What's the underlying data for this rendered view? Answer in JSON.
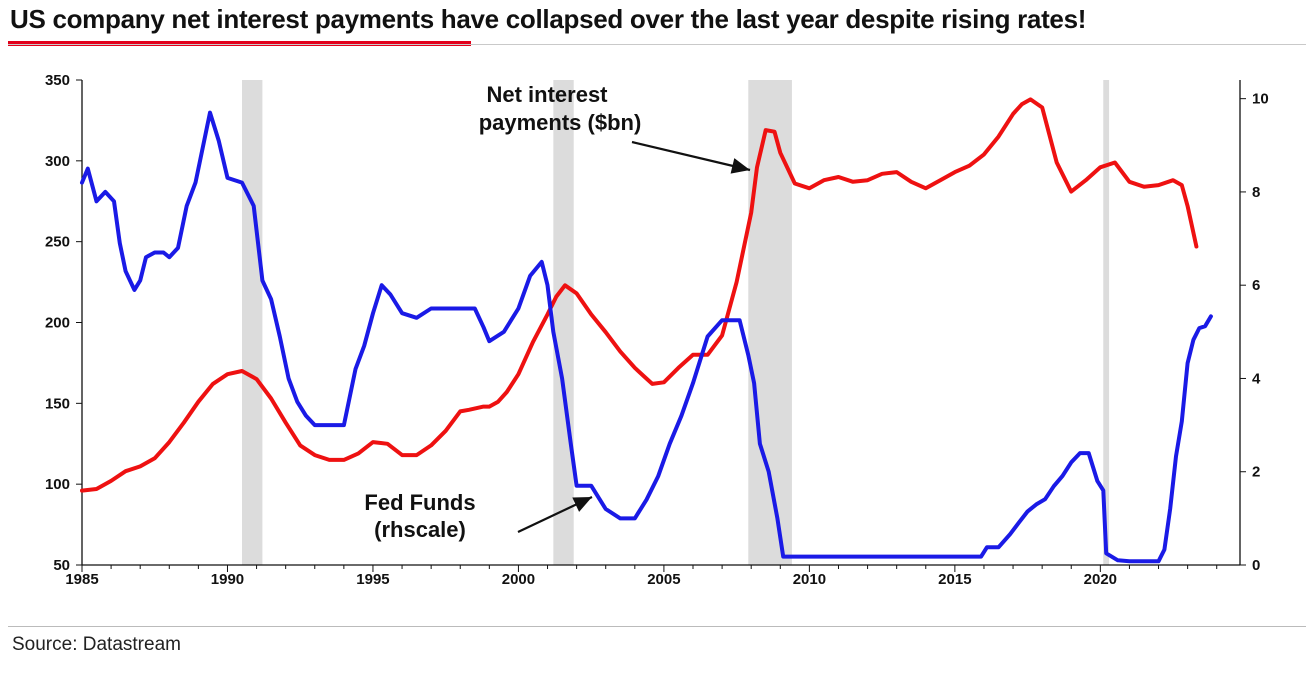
{
  "title": "US company net interest payments have collapsed over the last year despite rising rates!",
  "source": "Source: Datastream",
  "colors": {
    "net_interest": "#ee1111",
    "fed_funds": "#1a1ae6",
    "recession_shading": "#dcdcdc",
    "title_accent": "#e2001a"
  },
  "chart_data": {
    "type": "line",
    "title": "US company net interest payments have collapsed over the last year despite rising rates!",
    "xlim": [
      1985,
      2024.8
    ],
    "x_ticks": [
      1985,
      1990,
      1995,
      2000,
      2005,
      2010,
      2015,
      2020
    ],
    "y_left": {
      "lim": [
        50,
        350
      ],
      "ticks": [
        50,
        100,
        150,
        200,
        250,
        300,
        350
      ]
    },
    "y_right": {
      "lim": [
        0,
        10.4
      ],
      "ticks": [
        0,
        2,
        4,
        6,
        8,
        10
      ],
      "label": "rhscale"
    },
    "recessions": [
      [
        1990.5,
        1991.2
      ],
      [
        2001.2,
        2001.9
      ],
      [
        2007.9,
        2009.4
      ],
      [
        2020.1,
        2020.3
      ]
    ],
    "annotations": [
      {
        "id": "net",
        "lines": [
          "Net interest",
          "payments ($bn)"
        ]
      },
      {
        "id": "fed",
        "lines": [
          "Fed Funds",
          "(rhscale)"
        ]
      }
    ],
    "series": [
      {
        "name": "Net interest payments ($bn)",
        "axis": "left",
        "x": [
          1985,
          1985.5,
          1986,
          1986.5,
          1987,
          1987.5,
          1988,
          1988.5,
          1989,
          1989.5,
          1990,
          1990.5,
          1991,
          1991.5,
          1992,
          1992.5,
          1993,
          1993.5,
          1994,
          1994.5,
          1995,
          1995.5,
          1996,
          1996.5,
          1997,
          1997.5,
          1998,
          1998.3,
          1998.8,
          1999,
          1999.3,
          1999.6,
          2000,
          2000.5,
          2001,
          2001.3,
          2001.6,
          2002,
          2002.5,
          2003,
          2003.5,
          2004,
          2004.3,
          2004.6,
          2005,
          2005.5,
          2006,
          2006.5,
          2007,
          2007.5,
          2008,
          2008.2,
          2008.5,
          2008.8,
          2009,
          2009.5,
          2010,
          2010.5,
          2011,
          2011.5,
          2012,
          2012.5,
          2013,
          2013.5,
          2014,
          2014.5,
          2015,
          2015.5,
          2016,
          2016.5,
          2017,
          2017.3,
          2017.6,
          2018,
          2018.5,
          2019,
          2019.5,
          2020,
          2020.5,
          2021,
          2021.5,
          2022,
          2022.5,
          2022.8,
          2023,
          2023.3
        ],
        "values": [
          96,
          97,
          102,
          108,
          111,
          116,
          126,
          138,
          151,
          162,
          168,
          170,
          165,
          153,
          138,
          124,
          118,
          115,
          115,
          119,
          126,
          125,
          118,
          118,
          124,
          133,
          145,
          146,
          148,
          148,
          151,
          157,
          168,
          188,
          205,
          216,
          223,
          218,
          205,
          194,
          182,
          172,
          167,
          162,
          163,
          172,
          180,
          180,
          192,
          225,
          268,
          296,
          319,
          318,
          305,
          286,
          283,
          288,
          290,
          287,
          288,
          292,
          293,
          287,
          283,
          288,
          293,
          297,
          304,
          315,
          329,
          335,
          338,
          333,
          299,
          281,
          288,
          296,
          299,
          287,
          284,
          285,
          288,
          285,
          272,
          247
        ]
      },
      {
        "name": "Fed Funds",
        "axis": "right",
        "x": [
          1985,
          1985.2,
          1985.5,
          1985.8,
          1986.1,
          1986.3,
          1986.5,
          1986.8,
          1987.0,
          1987.2,
          1987.5,
          1987.8,
          1988.0,
          1988.3,
          1988.6,
          1988.9,
          1989.2,
          1989.4,
          1989.7,
          1990.0,
          1990.5,
          1990.9,
          1991.2,
          1991.5,
          1991.8,
          1992.1,
          1992.4,
          1992.7,
          1993.0,
          1993.5,
          1994.0,
          1994.4,
          1994.7,
          1995.0,
          1995.3,
          1995.6,
          1996.0,
          1996.5,
          1997.0,
          1997.5,
          1998.0,
          1998.5,
          1998.8,
          1999.0,
          1999.5,
          2000.0,
          2000.4,
          2000.8,
          2001.0,
          2001.2,
          2001.5,
          2001.8,
          2002.0,
          2002.5,
          2003.0,
          2003.5,
          2004.0,
          2004.4,
          2004.8,
          2005.2,
          2005.6,
          2006.0,
          2006.5,
          2007.0,
          2007.6,
          2007.9,
          2008.1,
          2008.3,
          2008.6,
          2008.9,
          2009.1,
          2010,
          2012,
          2014,
          2015.9,
          2016.1,
          2016.5,
          2016.9,
          2017.2,
          2017.5,
          2017.8,
          2018.1,
          2018.4,
          2018.7,
          2019.0,
          2019.3,
          2019.6,
          2019.9,
          2020.1,
          2020.2,
          2020.6,
          2021,
          2021.5,
          2022.0,
          2022.2,
          2022.4,
          2022.6,
          2022.8,
          2023.0,
          2023.2,
          2023.4,
          2023.6,
          2023.8
        ],
        "values": [
          8.2,
          8.5,
          7.8,
          8.0,
          7.8,
          6.9,
          6.3,
          5.9,
          6.1,
          6.6,
          6.7,
          6.7,
          6.6,
          6.8,
          7.7,
          8.2,
          9.1,
          9.7,
          9.1,
          8.3,
          8.2,
          7.7,
          6.1,
          5.7,
          4.9,
          4.0,
          3.5,
          3.2,
          3.0,
          3.0,
          3.0,
          4.2,
          4.7,
          5.4,
          6.0,
          5.8,
          5.4,
          5.3,
          5.5,
          5.5,
          5.5,
          5.5,
          5.1,
          4.8,
          5.0,
          5.5,
          6.2,
          6.5,
          6.0,
          5.0,
          4.0,
          2.6,
          1.7,
          1.7,
          1.2,
          1.0,
          1.0,
          1.4,
          1.9,
          2.6,
          3.2,
          3.9,
          4.9,
          5.25,
          5.25,
          4.5,
          3.9,
          2.6,
          2.0,
          1.0,
          0.18,
          0.18,
          0.18,
          0.18,
          0.18,
          0.38,
          0.38,
          0.66,
          0.91,
          1.15,
          1.3,
          1.41,
          1.69,
          1.91,
          2.2,
          2.4,
          2.4,
          1.8,
          1.6,
          0.25,
          0.1,
          0.08,
          0.08,
          0.08,
          0.33,
          1.21,
          2.33,
          3.08,
          4.33,
          4.83,
          5.08,
          5.12,
          5.33
        ]
      }
    ]
  }
}
